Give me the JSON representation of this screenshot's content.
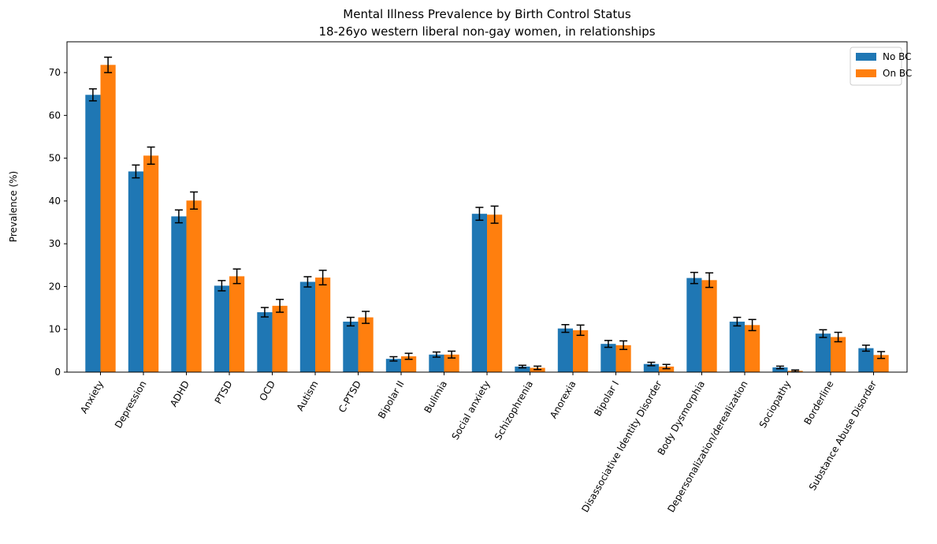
{
  "chart_data": {
    "type": "bar",
    "title": "Mental Illness Prevalence by Birth Control Status",
    "subtitle": "18-26yo western liberal non-gay women, in relationships",
    "xlabel": "",
    "ylabel": "Prevalence (%)",
    "ylim": [
      0,
      77.2
    ],
    "yticks": [
      0,
      10,
      20,
      30,
      40,
      50,
      60,
      70
    ],
    "grid": false,
    "legend_position": "top-right",
    "categories": [
      "Anxiety",
      "Depression",
      "ADHD",
      "PTSD",
      "OCD",
      "Autism",
      "C-PTSD",
      "Bipolar II",
      "Bulimia",
      "Social anxiety",
      "Schizophrenia",
      "Anorexia",
      "Bipolar I",
      "Disassociative Identity Disorder",
      "Body Dysmorphia",
      "Depersonalization/derealization",
      "Sociopathy",
      "Borderline",
      "Substance Abuse Disorder"
    ],
    "series": [
      {
        "name": "No BC",
        "color": "#1f77b4",
        "values": [
          64.8,
          46.9,
          36.4,
          20.2,
          14.0,
          21.1,
          11.8,
          3.1,
          4.1,
          37.0,
          1.3,
          10.2,
          6.6,
          1.9,
          22.0,
          11.8,
          1.1,
          9.0,
          5.6
        ],
        "errors": [
          1.4,
          1.5,
          1.5,
          1.2,
          1.1,
          1.2,
          1.0,
          0.5,
          0.6,
          1.5,
          0.3,
          0.9,
          0.8,
          0.4,
          1.3,
          1.0,
          0.3,
          0.9,
          0.7
        ]
      },
      {
        "name": "On BC",
        "color": "#ff7f0e",
        "values": [
          71.8,
          50.6,
          40.1,
          22.4,
          15.5,
          22.1,
          12.8,
          3.7,
          4.1,
          36.8,
          1.0,
          9.8,
          6.3,
          1.3,
          21.5,
          11.0,
          0.3,
          8.2,
          4.0
        ],
        "errors": [
          1.8,
          2.0,
          2.0,
          1.7,
          1.5,
          1.7,
          1.4,
          0.7,
          0.8,
          2.0,
          0.4,
          1.2,
          1.0,
          0.5,
          1.7,
          1.3,
          0.2,
          1.1,
          0.8
        ]
      }
    ]
  }
}
